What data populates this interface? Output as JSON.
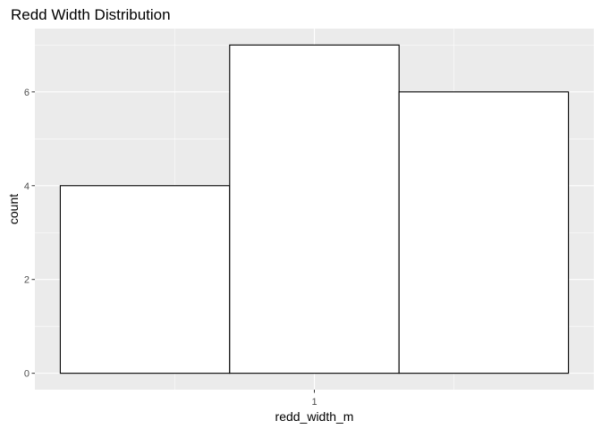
{
  "chart_data": {
    "type": "bar",
    "title": "Redd Width Distribution",
    "xlabel": "redd_width_m",
    "ylabel": "count",
    "x_ticks": [
      "1"
    ],
    "bins": [
      {
        "x0": 0.25,
        "x1": 0.75,
        "value": 4
      },
      {
        "x0": 0.75,
        "x1": 1.25,
        "value": 7
      },
      {
        "x0": 1.25,
        "x1": 1.75,
        "value": 6
      }
    ],
    "xlim": [
      0.175,
      1.825
    ],
    "ylim": [
      -0.35,
      7.35
    ],
    "y_ticks": [
      0,
      2,
      4,
      6
    ],
    "grid": true,
    "colors": {
      "panel_bg": "#ebebeb",
      "grid_major": "#ffffff",
      "bar_fill": "#ffffff",
      "bar_stroke": "#000000"
    }
  }
}
